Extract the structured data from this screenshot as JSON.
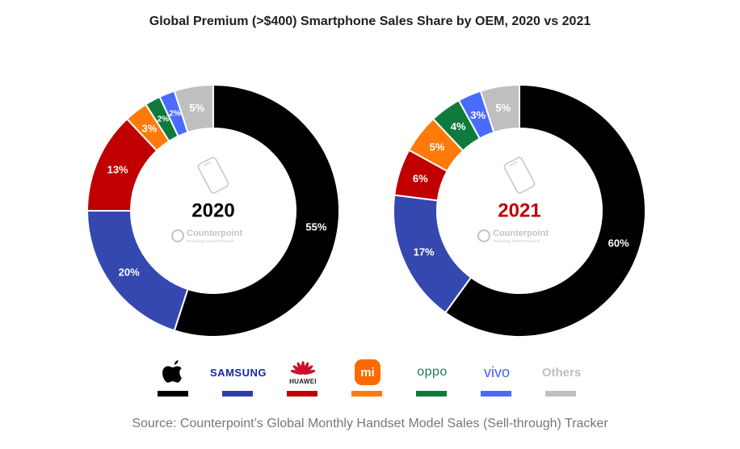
{
  "title": "Global Premium (>$400) Smartphone Sales Share by OEM, 2020 vs 2021",
  "source": "Source: Counterpoint’s Global Monthly Handset Model Sales (Sell-through) Tracker",
  "watermark": {
    "name": "Counterpoint",
    "tagline": "Technology Market Research"
  },
  "legend": [
    {
      "name": "Apple",
      "color": "#000000",
      "icon": "apple-icon"
    },
    {
      "name": "SAMSUNG",
      "color": "#2e3ea8",
      "icon": "samsung-logo"
    },
    {
      "name": "HUAWEI",
      "color": "#c00000",
      "icon": "huawei-logo"
    },
    {
      "name": "mi",
      "color": "#ff7a0a",
      "icon": "xiaomi-logo"
    },
    {
      "name": "oppo",
      "color": "#0f7a3c",
      "icon": "oppo-logo"
    },
    {
      "name": "vivo",
      "color": "#4a6bff",
      "icon": "vivo-logo"
    },
    {
      "name": "Others",
      "color": "#bfbfbf",
      "icon": "others-label"
    }
  ],
  "chart_data": [
    {
      "type": "pie",
      "center_label": "2020",
      "center_label_color": "#000000",
      "categories": [
        "Apple",
        "Samsung",
        "Huawei",
        "Xiaomi",
        "Oppo",
        "Vivo",
        "Others"
      ],
      "values": [
        55,
        20,
        13,
        3,
        2,
        2,
        5
      ],
      "labels": [
        "55%",
        "20%",
        "13%",
        "3%",
        "2%",
        "2%",
        "5%"
      ],
      "colors": [
        "#000000",
        "#3548b0",
        "#c00000",
        "#ff7a0a",
        "#0f7a3c",
        "#4a6bff",
        "#bfbfbf"
      ]
    },
    {
      "type": "pie",
      "center_label": "2021",
      "center_label_color": "#c00000",
      "categories": [
        "Apple",
        "Samsung",
        "Huawei",
        "Xiaomi",
        "Oppo",
        "Vivo",
        "Others"
      ],
      "values": [
        60,
        17,
        6,
        5,
        4,
        3,
        5
      ],
      "labels": [
        "60%",
        "17%",
        "6%",
        "5%",
        "4%",
        "3%",
        "5%"
      ],
      "colors": [
        "#000000",
        "#3548b0",
        "#c00000",
        "#ff7a0a",
        "#0f7a3c",
        "#4a6bff",
        "#bfbfbf"
      ]
    }
  ]
}
